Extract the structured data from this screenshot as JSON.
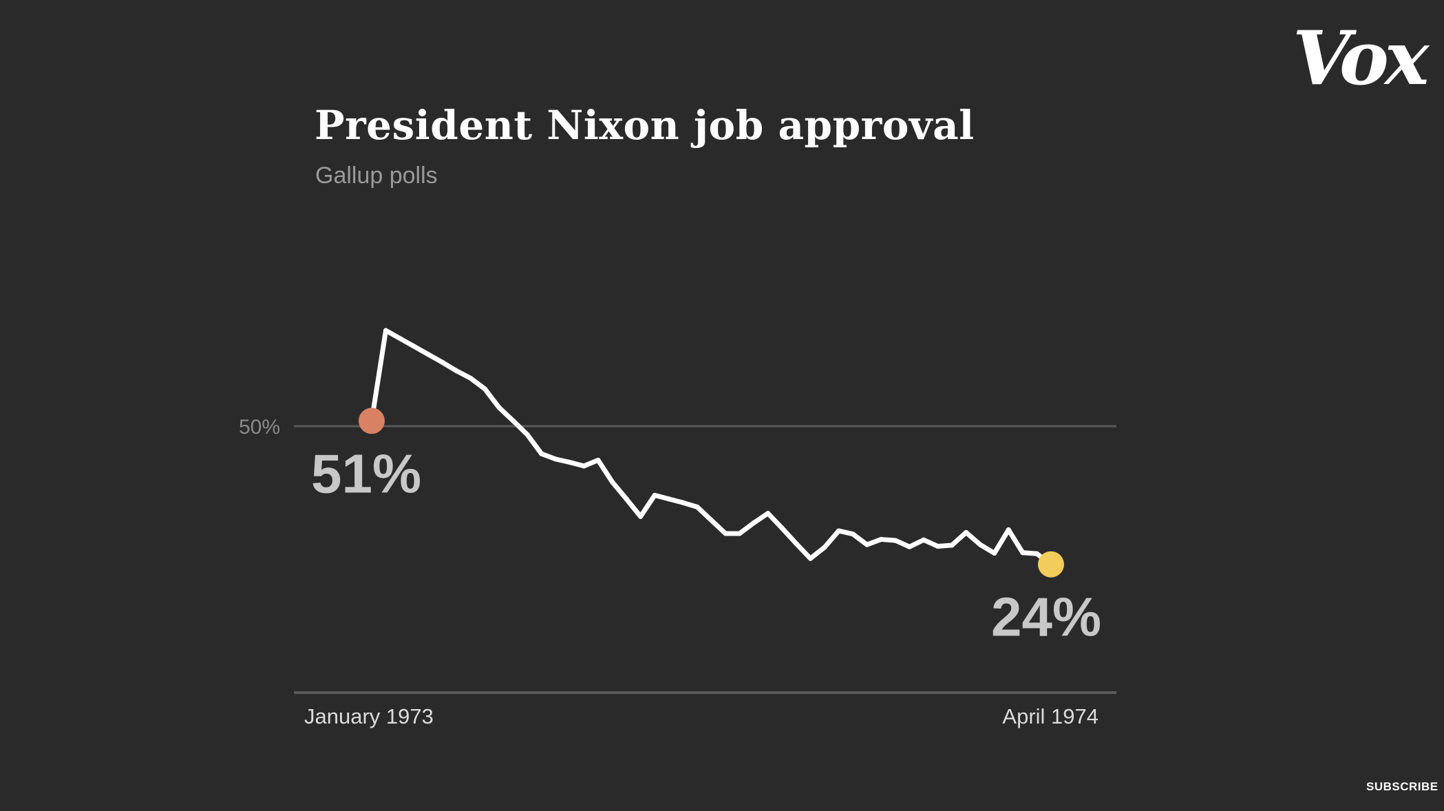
{
  "brand": {
    "logo_text": "Vox",
    "subscribe_label": "SUBSCRIBE"
  },
  "chart_data": {
    "type": "line",
    "title": "President Nixon job approval",
    "subtitle": "Gallup polls",
    "xlabel": "",
    "ylabel": "",
    "x_start_label": "January 1973",
    "x_end_label": "April 1974",
    "ylim": [
      0,
      70
    ],
    "reference_line": {
      "value": 50,
      "label": "50%"
    },
    "start_point": {
      "value": 51,
      "label": "51%",
      "color": "#d98163"
    },
    "end_point": {
      "value": 24,
      "label": "24%",
      "color": "#f2cd5c"
    },
    "line_color": "#ffffff",
    "series": [
      {
        "values": [
          51,
          68,
          66.5,
          65,
          63.5,
          62,
          60.4,
          59,
          57,
          53.5,
          51,
          48.4,
          44.8,
          43.8,
          43.2,
          42.5,
          43.6,
          39.5,
          36.3,
          33,
          37,
          36.3,
          35.6,
          34.8,
          32.3,
          29.8,
          29.8,
          31.8,
          33.6,
          30.8,
          27.9,
          25.1,
          27.2,
          30.3,
          29.7,
          27.7,
          28.7,
          28.5,
          27.3,
          28.6,
          27.4,
          27.6,
          30,
          27.7,
          26.1,
          30.5,
          26.2,
          26,
          24
        ]
      }
    ]
  }
}
